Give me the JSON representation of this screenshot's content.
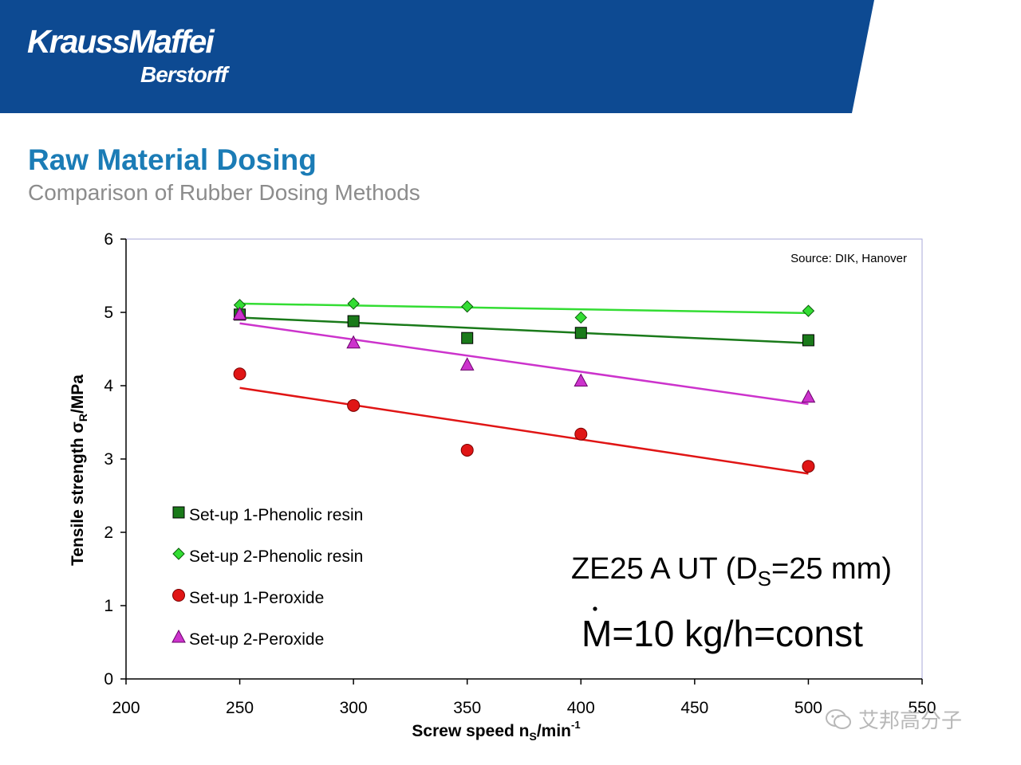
{
  "brand": {
    "name": "KraussMaffei",
    "sub": "Berstorff",
    "color": "#0d4a92"
  },
  "slide": {
    "title": "Raw Material Dosing",
    "subtitle": "Comparison of Rubber Dosing Methods"
  },
  "watermark": {
    "text": "艾邦高分子"
  },
  "chart_data": {
    "type": "scatter",
    "title": "",
    "xlabel": "Screw speed n",
    "xlabel_sub": "S",
    "xlabel_unit": "/min",
    "xlabel_sup": "-1",
    "ylabel": "Tensile strength σ",
    "ylabel_sub": "R",
    "ylabel_unit": "/MPa",
    "xlim": [
      200,
      550
    ],
    "ylim": [
      0,
      6
    ],
    "x_ticks": [
      200,
      250,
      300,
      350,
      400,
      450,
      500,
      550
    ],
    "y_ticks": [
      0,
      1,
      2,
      3,
      4,
      5,
      6
    ],
    "grid": false,
    "legend_position": "bottom-left",
    "source_note": "Source: DIK, Hanover",
    "annotations": [
      {
        "id": "machine",
        "parts": [
          "ZE25 A UT (D",
          "S",
          "=25 mm)"
        ]
      },
      {
        "id": "throughput",
        "text": "M=10 kg/h=const",
        "dot_over": "M"
      }
    ],
    "series": [
      {
        "name": "Set-up 1-Phenolic resin",
        "marker": "square",
        "color": "#1a7a1a",
        "x": [
          250,
          300,
          350,
          400,
          500
        ],
        "y": [
          4.97,
          4.88,
          4.65,
          4.72,
          4.62
        ],
        "trend": [
          [
            250,
            4.93
          ],
          [
            500,
            4.58
          ]
        ]
      },
      {
        "name": "Set-up 2-Phenolic resin",
        "marker": "diamond",
        "color": "#33dd33",
        "x": [
          250,
          300,
          350,
          400,
          500
        ],
        "y": [
          5.1,
          5.12,
          5.08,
          4.93,
          5.02
        ],
        "trend": [
          [
            250,
            5.12
          ],
          [
            500,
            4.99
          ]
        ]
      },
      {
        "name": "Set-up 1-Peroxide",
        "marker": "circle",
        "color": "#e01515",
        "x": [
          250,
          300,
          350,
          400,
          500
        ],
        "y": [
          4.16,
          3.73,
          3.12,
          3.34,
          2.9
        ],
        "trend": [
          [
            250,
            3.97
          ],
          [
            500,
            2.8
          ]
        ]
      },
      {
        "name": "Set-up 2-Peroxide",
        "marker": "triangle",
        "color": "#cc33cc",
        "x": [
          250,
          300,
          350,
          400,
          500
        ],
        "y": [
          4.98,
          4.59,
          4.29,
          4.07,
          3.85
        ],
        "trend": [
          [
            250,
            4.85
          ],
          [
            500,
            3.75
          ]
        ]
      }
    ]
  }
}
